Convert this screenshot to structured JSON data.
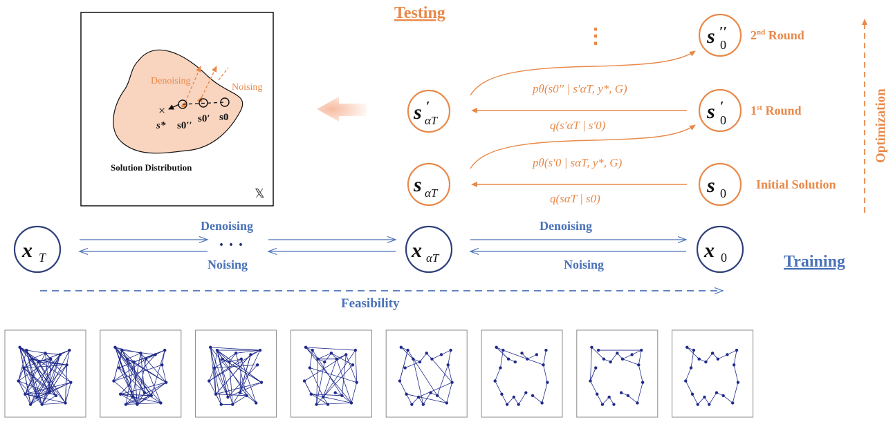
{
  "colors": {
    "orange": "#E8894A",
    "blue": "#4A72B8",
    "navy": "#1F2A8A",
    "blob": "#F9D4BF"
  },
  "inset": {
    "title": "Solution Distribution",
    "space_symbol": "𝕏",
    "denoising": "Denoising",
    "noising": "Noising",
    "sstar": "s*",
    "s0pp": "s0′′",
    "s0p": "s0′",
    "s0": "s0"
  },
  "testing": {
    "title": "Testing",
    "ellipsis": "⋮",
    "nodes": {
      "s_alpha_t_prime": {
        "base": "s",
        "prime": "′",
        "sub": "αT"
      },
      "s_alpha_t": {
        "base": "s",
        "sub": "αT"
      },
      "s0pp": {
        "base": "s",
        "prime": "′′",
        "sub": "0"
      },
      "s0p": {
        "base": "s",
        "prime": "′",
        "sub": "0"
      },
      "s0": {
        "base": "s",
        "sub": "0"
      }
    },
    "round_labels": {
      "second": {
        "num": "2",
        "sup": "nd",
        "text": " Round"
      },
      "first": {
        "num": "1",
        "sup": "st",
        "text": " Round"
      },
      "initial": "Initial Solution"
    },
    "formulas": {
      "p_second": "pθ(s0′′ | s′αT, y*, G)",
      "q_first": "q(s′αT | s′0)",
      "p_first": "pθ(s′0 | sαT, y*, G)",
      "q_initial": "q(sαT | s0)"
    },
    "optimization": "Optimization"
  },
  "training": {
    "title": "Training",
    "nodes": {
      "xT": {
        "base": "x",
        "sub": "T"
      },
      "x_alpha_t": {
        "base": "x",
        "sub": "αT"
      },
      "x0": {
        "base": "x",
        "sub": "0"
      }
    },
    "denoising_left": "Denoising",
    "noising_left": "Noising",
    "denoising_right": "Denoising",
    "noising_right": "Noising",
    "dots": "· · ·",
    "feasibility": "Feasibility"
  },
  "graph_strip": {
    "panel_count": 8,
    "description_edges_decreasing": [
      90,
      70,
      58,
      40,
      26,
      18,
      22,
      22
    ]
  }
}
